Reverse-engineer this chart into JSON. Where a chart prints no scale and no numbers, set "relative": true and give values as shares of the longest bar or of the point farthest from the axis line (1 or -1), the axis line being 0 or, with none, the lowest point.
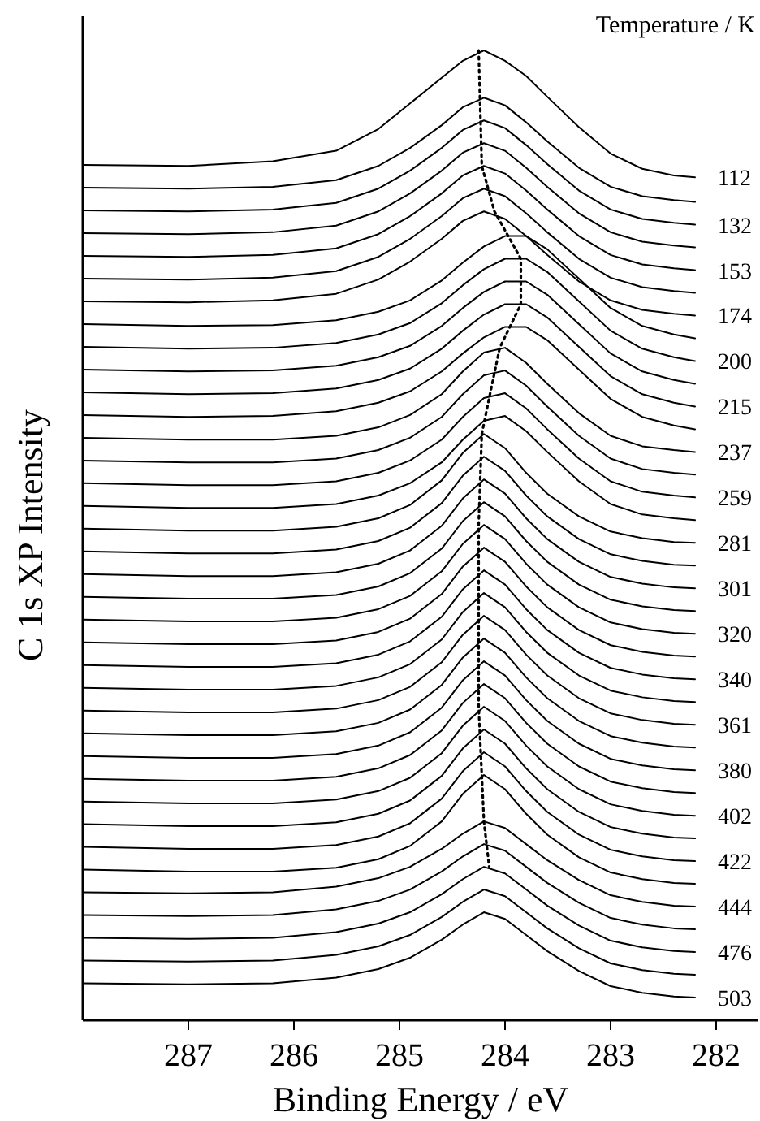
{
  "chart_data": {
    "type": "line",
    "relative": true,
    "xlabel": "Binding Energy / eV",
    "ylabel": "C 1s XP Intensity",
    "legend_title": "Temperature / K",
    "xlim": [
      288,
      281.6
    ],
    "xticks": [
      287,
      286,
      285,
      284,
      283,
      282
    ],
    "tick_labels": "x",
    "grid": false,
    "x": [
      288,
      287,
      286.2,
      285.6,
      285.2,
      284.9,
      284.6,
      284.4,
      284.2,
      284.0,
      283.8,
      283.6,
      283.3,
      283.0,
      282.7,
      282.4,
      282.2
    ],
    "series": [
      {
        "name": "112",
        "color": "#000000",
        "values": [
          0.879,
          0.878,
          0.883,
          0.894,
          0.917,
          0.944,
          0.971,
          0.989,
          1.0,
          0.989,
          0.973,
          0.951,
          0.919,
          0.891,
          0.875,
          0.868,
          0.866
        ]
      },
      {
        "color": "#000000",
        "values": [
          0.855,
          0.854,
          0.856,
          0.863,
          0.878,
          0.897,
          0.921,
          0.94,
          0.95,
          0.942,
          0.924,
          0.904,
          0.876,
          0.856,
          0.846,
          0.842,
          0.84
        ]
      },
      {
        "name": "132",
        "color": "#000000",
        "values": [
          0.831,
          0.83,
          0.832,
          0.839,
          0.854,
          0.873,
          0.897,
          0.916,
          0.926,
          0.918,
          0.9,
          0.88,
          0.852,
          0.832,
          0.822,
          0.818,
          0.816
        ]
      },
      {
        "color": "#000000",
        "values": [
          0.807,
          0.806,
          0.808,
          0.815,
          0.83,
          0.849,
          0.873,
          0.892,
          0.902,
          0.894,
          0.876,
          0.856,
          0.828,
          0.808,
          0.798,
          0.794,
          0.792
        ]
      },
      {
        "name": "153",
        "color": "#000000",
        "values": [
          0.783,
          0.782,
          0.784,
          0.791,
          0.806,
          0.825,
          0.849,
          0.868,
          0.878,
          0.87,
          0.852,
          0.832,
          0.804,
          0.784,
          0.774,
          0.77,
          0.768
        ]
      },
      {
        "color": "#000000",
        "values": [
          0.759,
          0.758,
          0.76,
          0.767,
          0.782,
          0.801,
          0.825,
          0.844,
          0.854,
          0.846,
          0.828,
          0.808,
          0.78,
          0.76,
          0.75,
          0.746,
          0.744
        ]
      },
      {
        "name": "174",
        "color": "#000000",
        "values": [
          0.735,
          0.734,
          0.736,
          0.743,
          0.758,
          0.777,
          0.801,
          0.82,
          0.83,
          0.822,
          0.804,
          0.784,
          0.756,
          0.736,
          0.726,
          0.722,
          0.72
        ]
      },
      {
        "color": "#000000",
        "values": [
          0.711,
          0.709,
          0.71,
          0.715,
          0.724,
          0.736,
          0.757,
          0.776,
          0.793,
          0.804,
          0.804,
          0.79,
          0.759,
          0.728,
          0.709,
          0.7,
          0.696
        ]
      },
      {
        "name": "200",
        "color": "#000000",
        "values": [
          0.687,
          0.685,
          0.686,
          0.691,
          0.7,
          0.712,
          0.733,
          0.752,
          0.769,
          0.78,
          0.78,
          0.766,
          0.735,
          0.704,
          0.685,
          0.676,
          0.672
        ]
      },
      {
        "color": "#000000",
        "values": [
          0.663,
          0.661,
          0.662,
          0.667,
          0.676,
          0.688,
          0.709,
          0.728,
          0.745,
          0.756,
          0.756,
          0.742,
          0.711,
          0.68,
          0.661,
          0.652,
          0.648
        ]
      },
      {
        "name": "215",
        "color": "#000000",
        "values": [
          0.639,
          0.637,
          0.638,
          0.643,
          0.652,
          0.664,
          0.685,
          0.704,
          0.721,
          0.732,
          0.732,
          0.718,
          0.687,
          0.656,
          0.637,
          0.628,
          0.624
        ]
      },
      {
        "color": "#000000",
        "values": [
          0.615,
          0.613,
          0.614,
          0.619,
          0.628,
          0.64,
          0.661,
          0.68,
          0.697,
          0.708,
          0.708,
          0.694,
          0.663,
          0.632,
          0.613,
          0.604,
          0.6
        ]
      },
      {
        "name": "237",
        "color": "#000000",
        "values": [
          0.591,
          0.589,
          0.589,
          0.593,
          0.602,
          0.615,
          0.637,
          0.661,
          0.681,
          0.686,
          0.67,
          0.648,
          0.617,
          0.593,
          0.582,
          0.578,
          0.576
        ]
      },
      {
        "color": "#000000",
        "values": [
          0.567,
          0.565,
          0.565,
          0.569,
          0.578,
          0.591,
          0.613,
          0.637,
          0.657,
          0.662,
          0.646,
          0.624,
          0.593,
          0.569,
          0.558,
          0.554,
          0.552
        ]
      },
      {
        "name": "259",
        "color": "#000000",
        "values": [
          0.543,
          0.541,
          0.541,
          0.545,
          0.554,
          0.567,
          0.589,
          0.613,
          0.633,
          0.638,
          0.622,
          0.6,
          0.569,
          0.545,
          0.534,
          0.53,
          0.528
        ]
      },
      {
        "color": "#000000",
        "values": [
          0.519,
          0.517,
          0.517,
          0.521,
          0.53,
          0.543,
          0.565,
          0.589,
          0.609,
          0.614,
          0.598,
          0.576,
          0.545,
          0.521,
          0.51,
          0.506,
          0.504
        ]
      },
      {
        "name": "281",
        "color": "#000000",
        "values": [
          0.495,
          0.493,
          0.493,
          0.497,
          0.506,
          0.52,
          0.546,
          0.575,
          0.595,
          0.58,
          0.554,
          0.532,
          0.508,
          0.492,
          0.485,
          0.481,
          0.48
        ]
      },
      {
        "color": "#000000",
        "values": [
          0.471,
          0.469,
          0.469,
          0.473,
          0.482,
          0.496,
          0.522,
          0.551,
          0.571,
          0.556,
          0.53,
          0.508,
          0.484,
          0.468,
          0.461,
          0.457,
          0.456
        ]
      },
      {
        "name": "301",
        "color": "#000000",
        "values": [
          0.447,
          0.445,
          0.445,
          0.449,
          0.458,
          0.472,
          0.498,
          0.527,
          0.547,
          0.532,
          0.506,
          0.484,
          0.46,
          0.444,
          0.437,
          0.433,
          0.432
        ]
      },
      {
        "color": "#000000",
        "values": [
          0.423,
          0.421,
          0.421,
          0.425,
          0.434,
          0.448,
          0.474,
          0.503,
          0.523,
          0.508,
          0.482,
          0.46,
          0.436,
          0.42,
          0.413,
          0.409,
          0.408
        ]
      },
      {
        "name": "320",
        "color": "#000000",
        "values": [
          0.399,
          0.397,
          0.397,
          0.401,
          0.41,
          0.424,
          0.45,
          0.479,
          0.499,
          0.484,
          0.458,
          0.436,
          0.412,
          0.396,
          0.389,
          0.385,
          0.384
        ]
      },
      {
        "color": "#000000",
        "values": [
          0.375,
          0.373,
          0.373,
          0.377,
          0.386,
          0.4,
          0.426,
          0.455,
          0.475,
          0.46,
          0.434,
          0.412,
          0.388,
          0.372,
          0.365,
          0.361,
          0.36
        ]
      },
      {
        "name": "340",
        "color": "#000000",
        "values": [
          0.351,
          0.349,
          0.349,
          0.353,
          0.362,
          0.376,
          0.402,
          0.431,
          0.451,
          0.436,
          0.41,
          0.388,
          0.364,
          0.348,
          0.341,
          0.337,
          0.336
        ]
      },
      {
        "color": "#000000",
        "values": [
          0.327,
          0.325,
          0.325,
          0.329,
          0.338,
          0.352,
          0.378,
          0.407,
          0.427,
          0.412,
          0.386,
          0.364,
          0.34,
          0.324,
          0.317,
          0.313,
          0.312
        ]
      },
      {
        "name": "361",
        "color": "#000000",
        "values": [
          0.303,
          0.301,
          0.301,
          0.305,
          0.314,
          0.328,
          0.354,
          0.383,
          0.403,
          0.388,
          0.362,
          0.34,
          0.316,
          0.3,
          0.293,
          0.289,
          0.288
        ]
      },
      {
        "color": "#000000",
        "values": [
          0.279,
          0.277,
          0.277,
          0.281,
          0.29,
          0.304,
          0.33,
          0.359,
          0.379,
          0.364,
          0.338,
          0.316,
          0.292,
          0.276,
          0.269,
          0.265,
          0.264
        ]
      },
      {
        "name": "380",
        "color": "#000000",
        "values": [
          0.255,
          0.253,
          0.253,
          0.257,
          0.266,
          0.28,
          0.306,
          0.335,
          0.355,
          0.34,
          0.314,
          0.292,
          0.268,
          0.252,
          0.245,
          0.241,
          0.24
        ]
      },
      {
        "color": "#000000",
        "values": [
          0.231,
          0.229,
          0.229,
          0.233,
          0.242,
          0.256,
          0.282,
          0.311,
          0.331,
          0.316,
          0.29,
          0.268,
          0.244,
          0.228,
          0.221,
          0.217,
          0.216
        ]
      },
      {
        "name": "402",
        "color": "#000000",
        "values": [
          0.207,
          0.205,
          0.205,
          0.209,
          0.218,
          0.232,
          0.258,
          0.287,
          0.307,
          0.292,
          0.266,
          0.244,
          0.22,
          0.204,
          0.197,
          0.193,
          0.192
        ]
      },
      {
        "color": "#000000",
        "values": [
          0.183,
          0.181,
          0.181,
          0.185,
          0.194,
          0.208,
          0.234,
          0.263,
          0.283,
          0.268,
          0.242,
          0.22,
          0.196,
          0.18,
          0.173,
          0.169,
          0.168
        ]
      },
      {
        "name": "422",
        "color": "#000000",
        "values": [
          0.159,
          0.157,
          0.157,
          0.161,
          0.17,
          0.184,
          0.21,
          0.239,
          0.259,
          0.244,
          0.218,
          0.196,
          0.172,
          0.156,
          0.149,
          0.145,
          0.144
        ]
      },
      {
        "color": "#000000",
        "values": [
          0.135,
          0.133,
          0.133,
          0.137,
          0.146,
          0.16,
          0.186,
          0.215,
          0.235,
          0.22,
          0.194,
          0.172,
          0.148,
          0.132,
          0.125,
          0.121,
          0.12
        ]
      },
      {
        "name": "444",
        "color": "#000000",
        "values": [
          0.111,
          0.11,
          0.111,
          0.117,
          0.126,
          0.138,
          0.157,
          0.173,
          0.186,
          0.179,
          0.162,
          0.145,
          0.124,
          0.108,
          0.101,
          0.097,
          0.096
        ]
      },
      {
        "color": "#000000",
        "values": [
          0.087,
          0.086,
          0.087,
          0.093,
          0.102,
          0.114,
          0.133,
          0.149,
          0.162,
          0.155,
          0.138,
          0.121,
          0.1,
          0.084,
          0.077,
          0.073,
          0.072
        ]
      },
      {
        "name": "476",
        "color": "#000000",
        "values": [
          0.063,
          0.062,
          0.063,
          0.069,
          0.078,
          0.09,
          0.109,
          0.125,
          0.138,
          0.131,
          0.114,
          0.097,
          0.076,
          0.06,
          0.053,
          0.049,
          0.048
        ]
      },
      {
        "color": "#000000",
        "values": [
          0.039,
          0.038,
          0.039,
          0.045,
          0.054,
          0.066,
          0.085,
          0.101,
          0.114,
          0.107,
          0.09,
          0.073,
          0.052,
          0.036,
          0.029,
          0.025,
          0.024
        ]
      },
      {
        "name": "503",
        "color": "#000000",
        "values": [
          0.015,
          0.014,
          0.015,
          0.021,
          0.03,
          0.042,
          0.061,
          0.077,
          0.09,
          0.083,
          0.066,
          0.049,
          0.028,
          0.012,
          0.005,
          0.001,
          0
        ]
      },
      {
        "type": "line",
        "line_style": "dotted",
        "color": "#000000",
        "x": [
          284.25,
          284.22,
          284.1,
          283.85,
          283.85,
          284.05,
          284.15,
          284.22,
          284.25,
          284.25,
          284.2,
          284.15
        ],
        "values": [
          1.0,
          0.878,
          0.83,
          0.78,
          0.732,
          0.686,
          0.633,
          0.595,
          0.499,
          0.307,
          0.186,
          0.138
        ]
      }
    ]
  }
}
